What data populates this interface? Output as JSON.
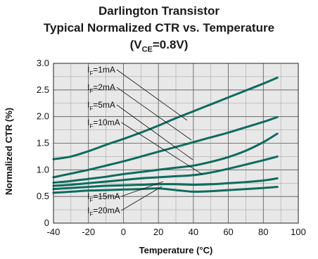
{
  "chart_data": {
    "type": "line",
    "title": "Darlington Transistor",
    "subtitle": "Typical Normalized CTR vs. Temperature",
    "condition": {
      "prefix": "(V",
      "sub": "CE",
      "suffix": "=0.8V)"
    },
    "xlabel": "Temperature (°C)",
    "ylabel": "Normalized CTR (%)",
    "xlim": [
      -40,
      100
    ],
    "ylim": [
      0,
      3.0
    ],
    "xticks": [
      -40,
      -20,
      0,
      20,
      40,
      60,
      80,
      100
    ],
    "yticks": [
      0,
      0.5,
      1.0,
      1.5,
      2.0,
      2.5,
      3.0
    ],
    "ytick_labels": [
      "0",
      "0.5",
      "1.0",
      "1.5",
      "2.0",
      "2.5",
      "3.0"
    ],
    "grid": true,
    "background": "#e8e8e8",
    "line_color": "#0f6b5e",
    "series": [
      {
        "name": "IF=1mA",
        "label_main": "I",
        "label_sub": "F",
        "label_tail": "=1mA",
        "x": [
          -40,
          -30,
          -20,
          -10,
          0,
          10,
          20,
          30,
          40,
          50,
          60,
          70,
          80,
          88
        ],
        "y": [
          1.2,
          1.25,
          1.35,
          1.47,
          1.58,
          1.7,
          1.83,
          1.97,
          2.1,
          2.23,
          2.36,
          2.49,
          2.62,
          2.73
        ]
      },
      {
        "name": "IF=2mA",
        "label_main": "I",
        "label_sub": "F",
        "label_tail": "=2mA",
        "x": [
          -40,
          -30,
          -20,
          -10,
          0,
          10,
          20,
          30,
          40,
          50,
          60,
          70,
          80,
          88
        ],
        "y": [
          0.86,
          0.93,
          1.0,
          1.08,
          1.16,
          1.25,
          1.34,
          1.43,
          1.52,
          1.61,
          1.7,
          1.8,
          1.9,
          1.99
        ]
      },
      {
        "name": "IF=5mA",
        "label_main": "I",
        "label_sub": "F",
        "label_tail": "=5mA",
        "x": [
          -40,
          -30,
          -20,
          -10,
          0,
          10,
          20,
          30,
          40,
          50,
          60,
          70,
          80,
          88
        ],
        "y": [
          0.76,
          0.79,
          0.83,
          0.87,
          0.92,
          0.96,
          1.0,
          1.04,
          1.08,
          1.15,
          1.24,
          1.36,
          1.52,
          1.68
        ]
      },
      {
        "name": "IF=10mA",
        "label_main": "I",
        "label_sub": "F",
        "label_tail": "=10mA",
        "x": [
          -40,
          -30,
          -20,
          -10,
          0,
          10,
          20,
          30,
          40,
          50,
          60,
          70,
          80,
          88
        ],
        "y": [
          0.7,
          0.72,
          0.75,
          0.78,
          0.81,
          0.84,
          0.86,
          0.88,
          0.9,
          0.95,
          1.02,
          1.1,
          1.18,
          1.25
        ]
      },
      {
        "name": "IF=15mA",
        "label_main": "I",
        "label_sub": "F",
        "label_tail": "=15mA",
        "x": [
          -40,
          -30,
          -20,
          -10,
          0,
          10,
          20,
          30,
          40,
          50,
          60,
          70,
          80,
          88
        ],
        "y": [
          0.64,
          0.66,
          0.68,
          0.7,
          0.71,
          0.72,
          0.73,
          0.73,
          0.72,
          0.73,
          0.75,
          0.77,
          0.8,
          0.84
        ]
      },
      {
        "name": "IF=20mA",
        "label_main": "I",
        "label_sub": "F",
        "label_tail": "=20mA",
        "x": [
          -40,
          -30,
          -20,
          -10,
          0,
          10,
          20,
          30,
          40,
          50,
          60,
          70,
          80,
          88
        ],
        "y": [
          0.57,
          0.59,
          0.61,
          0.62,
          0.63,
          0.64,
          0.65,
          0.62,
          0.59,
          0.6,
          0.62,
          0.64,
          0.66,
          0.68
        ]
      }
    ]
  }
}
